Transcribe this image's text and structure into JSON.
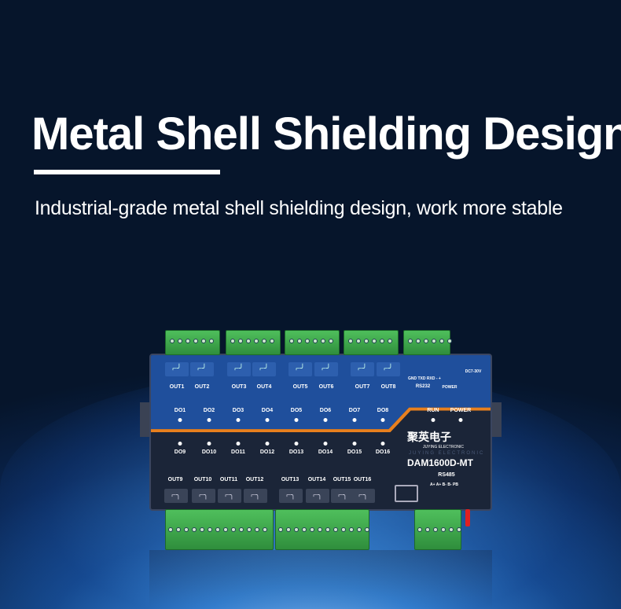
{
  "headline": "Metal Shell Shielding Design",
  "subheadline": "Industrial-grade metal shell shielding design, work more stable",
  "device": {
    "brand_cn": "聚英电子",
    "brand_en": "JUYING ELECTRONIC",
    "brand_faint": "JUYING ELECTRONIC",
    "model": "DAM1600D-MT",
    "outputs_top": [
      "OUT1",
      "OUT2",
      "OUT3",
      "OUT4",
      "OUT5",
      "OUT6",
      "OUT7",
      "OUT8"
    ],
    "outputs_bottom": [
      "OUT9",
      "OUT10",
      "OUT11",
      "OUT12",
      "OUT13",
      "OUT14",
      "OUT15",
      "OUT16"
    ],
    "do_top": [
      "DO1",
      "DO2",
      "DO3",
      "DO4",
      "DO5",
      "DO6",
      "DO7",
      "DO8"
    ],
    "do_bottom": [
      "DO9",
      "DO10",
      "DO11",
      "DO12",
      "DO13",
      "DO14",
      "DO15",
      "DO16"
    ],
    "rs232_pins": "GND TXD RXD  -  +",
    "rs232_label": "RS232",
    "power_label_small": "POWER",
    "dc_label": "DC7-30V",
    "run_label": "RUN",
    "power_label": "POWER",
    "rs485_label": "RS485",
    "rs485_pins": "A+ A+ B- B- PB",
    "colors": {
      "panel_blue": "#1f4f9c",
      "panel_dark": "#1b2538",
      "stripe": "#e8801e",
      "terminal": "#3fa84c"
    }
  }
}
